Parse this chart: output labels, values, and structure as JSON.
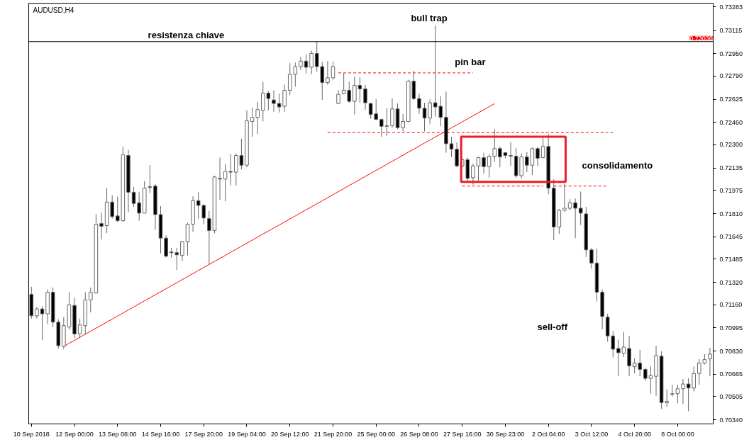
{
  "chart_data": {
    "type": "candlestick",
    "title": "AUDUSD,H4",
    "categories": [
      "10 Sep 2018",
      null,
      null,
      null,
      null,
      null,
      null,
      null,
      "12 Sep 00:00",
      null,
      null,
      null,
      null,
      null,
      null,
      null,
      "13 Sep 08:00",
      null,
      null,
      null,
      null,
      null,
      null,
      null,
      "14 Sep 16:00",
      null,
      null,
      null,
      null,
      null,
      null,
      null,
      "17 Sep 20:00",
      null,
      null,
      null,
      null,
      null,
      null,
      null,
      "19 Sep 04:00",
      null,
      null,
      null,
      null,
      null,
      null,
      null,
      "20 Sep 12:00",
      null,
      null,
      null,
      null,
      null,
      null,
      null,
      "21 Sep 20:00",
      null,
      null,
      null,
      null,
      null,
      null,
      null,
      "25 Sep 00:00",
      null,
      null,
      null,
      null,
      null,
      null,
      null,
      "26 Sep 08:00",
      null,
      null,
      null,
      null,
      null,
      null,
      null,
      "27 Sep 16:00",
      null,
      null,
      null,
      null,
      null,
      null,
      null,
      "30 Sep 23:00",
      null,
      null,
      null,
      null,
      null,
      null,
      null,
      "2 Oct 04:00",
      null,
      null,
      null,
      null,
      null,
      null,
      null,
      "3 Oct 12:00",
      null,
      null,
      null,
      null,
      null,
      null,
      null,
      "4 Oct 20:00",
      null,
      null,
      null,
      null,
      null,
      null,
      null,
      "8 Oct 00:00",
      null,
      null,
      null,
      null,
      null,
      null
    ],
    "ohlc": [
      [
        0.71234,
        0.71288,
        0.71061,
        0.71081
      ],
      [
        0.71081,
        0.71145,
        0.71061,
        0.7113
      ],
      [
        0.7113,
        0.7115,
        0.70907,
        0.71095
      ],
      [
        0.71095,
        0.71269,
        0.71021,
        0.71249
      ],
      [
        0.71249,
        0.71283,
        0.71001,
        0.71036
      ],
      [
        0.71036,
        0.71056,
        0.70848,
        0.70868
      ],
      [
        0.70863,
        0.71071,
        0.70843,
        0.71011
      ],
      [
        0.71001,
        0.71249,
        0.70982,
        0.7116
      ],
      [
        0.71155,
        0.71209,
        0.70922,
        0.70952
      ],
      [
        0.70952,
        0.71061,
        0.70922,
        0.71016
      ],
      [
        0.71011,
        0.71249,
        0.70947,
        0.71194
      ],
      [
        0.71194,
        0.71283,
        0.71105,
        0.71249
      ],
      [
        0.71244,
        0.71808,
        0.71239,
        0.71734
      ],
      [
        0.71739,
        0.71818,
        0.71625,
        0.71719
      ],
      [
        0.71724,
        0.71991,
        0.7167,
        0.71892
      ],
      [
        0.71892,
        0.71942,
        0.71774,
        0.71788
      ],
      [
        0.71793,
        0.71932,
        0.71749,
        0.71759
      ],
      [
        0.71759,
        0.72288,
        0.71749,
        0.72229
      ],
      [
        0.72224,
        0.72264,
        0.71818,
        0.71962
      ],
      [
        0.71962,
        0.72001,
        0.71858,
        0.71882
      ],
      [
        0.71887,
        0.71962,
        0.71759,
        0.71813
      ],
      [
        0.71813,
        0.72041,
        0.71813,
        0.71991
      ],
      [
        0.72001,
        0.72155,
        0.71957,
        0.71996
      ],
      [
        0.72006,
        0.72021,
        0.71694,
        0.71803
      ],
      [
        0.71803,
        0.71863,
        0.71526,
        0.71635
      ],
      [
        0.71635,
        0.71655,
        0.71496,
        0.71506
      ],
      [
        0.71536,
        0.71566,
        0.71496,
        0.71531
      ],
      [
        0.71531,
        0.71566,
        0.71407,
        0.71516
      ],
      [
        0.71511,
        0.71615,
        0.71472,
        0.7161
      ],
      [
        0.7161,
        0.71744,
        0.71511,
        0.71734
      ],
      [
        0.71734,
        0.71932,
        0.71679,
        0.71902
      ],
      [
        0.71902,
        0.71962,
        0.71774,
        0.71868
      ],
      [
        0.71868,
        0.71877,
        0.71734,
        0.71778
      ],
      [
        0.71774,
        0.71828,
        0.71447,
        0.71689
      ],
      [
        0.71689,
        0.7208,
        0.7167,
        0.72071
      ],
      [
        0.72061,
        0.72209,
        0.71907,
        0.72056
      ],
      [
        0.72056,
        0.72165,
        0.71897,
        0.7211
      ],
      [
        0.7211,
        0.72234,
        0.72011,
        0.72105
      ],
      [
        0.72105,
        0.72239,
        0.72011,
        0.72224
      ],
      [
        0.72224,
        0.72343,
        0.72125,
        0.72155
      ],
      [
        0.72155,
        0.72546,
        0.7214,
        0.72471
      ],
      [
        0.72467,
        0.72566,
        0.72358,
        0.72496
      ],
      [
        0.72496,
        0.72605,
        0.72377,
        0.72551
      ],
      [
        0.72546,
        0.72749,
        0.72467,
        0.72669
      ],
      [
        0.72669,
        0.72684,
        0.72546,
        0.7263
      ],
      [
        0.7262,
        0.72689,
        0.72536,
        0.72595
      ],
      [
        0.72595,
        0.72665,
        0.72531,
        0.7257
      ],
      [
        0.72575,
        0.72729,
        0.72536,
        0.72689
      ],
      [
        0.72689,
        0.72882,
        0.72655,
        0.72803
      ],
      [
        0.72803,
        0.72887,
        0.72714,
        0.72858
      ],
      [
        0.72858,
        0.72927,
        0.72833,
        0.72897
      ],
      [
        0.72897,
        0.72942,
        0.72808,
        0.72853
      ],
      [
        0.72853,
        0.72971,
        0.72803,
        0.72952
      ],
      [
        0.72952,
        0.73036,
        0.72823,
        0.72858
      ],
      [
        0.72858,
        0.72892,
        0.7262,
        0.72744
      ],
      [
        0.72744,
        0.72897,
        0.72729,
        0.72778
      ],
      [
        0.72778,
        0.72892,
        0.72764,
        0.72858
      ],
      [
        0.72595,
        0.72689,
        0.7259,
        0.7266
      ],
      [
        0.72665,
        0.72813,
        0.7266,
        0.72689
      ],
      [
        0.72689,
        0.72749,
        0.726,
        0.7261
      ],
      [
        0.7261,
        0.72788,
        0.72516,
        0.72724
      ],
      [
        0.72724,
        0.72783,
        0.726,
        0.72699
      ],
      [
        0.72699,
        0.72729,
        0.72551,
        0.726
      ],
      [
        0.72595,
        0.726,
        0.72486,
        0.72516
      ],
      [
        0.72521,
        0.72625,
        0.72476,
        0.72481
      ],
      [
        0.72481,
        0.72486,
        0.72358,
        0.72432
      ],
      [
        0.72432,
        0.72561,
        0.72363,
        0.72437
      ],
      [
        0.72437,
        0.7263,
        0.72422,
        0.72556
      ],
      [
        0.72556,
        0.72595,
        0.72412,
        0.72422
      ],
      [
        0.72422,
        0.72521,
        0.72397,
        0.72467
      ],
      [
        0.72467,
        0.72764,
        0.72462,
        0.72754
      ],
      [
        0.72754,
        0.72828,
        0.7262,
        0.7263
      ],
      [
        0.7263,
        0.72665,
        0.72521,
        0.72561
      ],
      [
        0.72561,
        0.726,
        0.72397,
        0.72491
      ],
      [
        0.72491,
        0.72625,
        0.72447,
        0.726
      ],
      [
        0.726,
        0.7315,
        0.72501,
        0.7257
      ],
      [
        0.72575,
        0.72645,
        0.72432,
        0.72496
      ],
      [
        0.72496,
        0.72679,
        0.72244,
        0.72308
      ],
      [
        0.72308,
        0.72358,
        0.72214,
        0.72269
      ],
      [
        0.72269,
        0.72318,
        0.7214,
        0.7215
      ],
      [
        0.7215,
        0.72204,
        0.7214,
        0.72194
      ],
      [
        0.72194,
        0.72209,
        0.72041,
        0.72061
      ],
      [
        0.72066,
        0.72165,
        0.72016,
        0.7215
      ],
      [
        0.7215,
        0.72214,
        0.72041,
        0.72209
      ],
      [
        0.72209,
        0.72244,
        0.72095,
        0.72145
      ],
      [
        0.72145,
        0.72234,
        0.72066,
        0.72219
      ],
      [
        0.72219,
        0.72412,
        0.72179,
        0.72273
      ],
      [
        0.72273,
        0.72288,
        0.7214,
        0.72214
      ],
      [
        0.72244,
        0.72249,
        0.72204,
        0.72224
      ],
      [
        0.72224,
        0.72318,
        0.7215,
        0.72219
      ],
      [
        0.72219,
        0.72278,
        0.72066,
        0.7208
      ],
      [
        0.7208,
        0.72239,
        0.72061,
        0.72214
      ],
      [
        0.72214,
        0.72249,
        0.72105,
        0.72155
      ],
      [
        0.72155,
        0.72283,
        0.72085,
        0.72273
      ],
      [
        0.72273,
        0.72283,
        0.7215,
        0.72204
      ],
      [
        0.72209,
        0.72348,
        0.72204,
        0.72288
      ],
      [
        0.72288,
        0.72377,
        0.71947,
        0.71991
      ],
      [
        0.71991,
        0.72056,
        0.7162,
        0.71714
      ],
      [
        0.71714,
        0.71843,
        0.71665,
        0.71833
      ],
      [
        0.71833,
        0.72021,
        0.71823,
        0.71848
      ],
      [
        0.71848,
        0.71912,
        0.71833,
        0.71887
      ],
      [
        0.71887,
        0.71917,
        0.71635,
        0.71848
      ],
      [
        0.71848,
        0.71967,
        0.71729,
        0.71813
      ],
      [
        0.71808,
        0.71858,
        0.71501,
        0.71551
      ],
      [
        0.71551,
        0.71566,
        0.71417,
        0.71457
      ],
      [
        0.71457,
        0.71561,
        0.71184,
        0.71249
      ],
      [
        0.71249,
        0.71269,
        0.70986,
        0.71076
      ],
      [
        0.71071,
        0.71095,
        0.70897,
        0.70937
      ],
      [
        0.70937,
        0.70972,
        0.70784,
        0.70843
      ],
      [
        0.70848,
        0.70912,
        0.7065,
        0.70818
      ],
      [
        0.70813,
        0.70967,
        0.70788,
        0.70858
      ],
      [
        0.70848,
        0.70937,
        0.7065,
        0.70724
      ],
      [
        0.70719,
        0.70779,
        0.7067,
        0.70744
      ],
      [
        0.70744,
        0.70838,
        0.7065,
        0.70699
      ],
      [
        0.70699,
        0.70709,
        0.70615,
        0.70635
      ],
      [
        0.70635,
        0.70719,
        0.70526,
        0.70655
      ],
      [
        0.7065,
        0.70868,
        0.70511,
        0.70798
      ],
      [
        0.70793,
        0.70828,
        0.70417,
        0.70462
      ],
      [
        0.70462,
        0.70556,
        0.70432,
        0.70472
      ],
      [
        0.70521,
        0.7059,
        0.70506,
        0.70526
      ],
      [
        0.70526,
        0.7059,
        0.70457,
        0.70561
      ],
      [
        0.70561,
        0.7063,
        0.70452,
        0.70595
      ],
      [
        0.70595,
        0.70635,
        0.70402,
        0.70566
      ],
      [
        0.70566,
        0.70719,
        0.70541,
        0.7067
      ],
      [
        0.7067,
        0.70774,
        0.7059,
        0.70744
      ],
      [
        0.70744,
        0.70808,
        0.70734,
        0.70769
      ],
      [
        0.70774,
        0.70853,
        0.7065,
        0.70808
      ]
    ],
    "series": [
      {
        "type": "line",
        "color": "#ff0000",
        "line_style": "solid",
        "values": [
          null,
          null,
          null,
          null,
          null,
          null,
          0.70863,
          0.70885,
          0.70906,
          0.70928,
          0.7095,
          0.70971,
          0.70993,
          0.71014,
          0.71036,
          0.71058,
          0.71079,
          0.71101,
          0.71123,
          0.71144,
          0.71166,
          0.71188,
          0.71209,
          0.71231,
          0.71252,
          0.71274,
          0.71296,
          0.71317,
          0.71339,
          0.71361,
          0.71382,
          0.71404,
          0.71426,
          0.71447,
          0.71469,
          0.7149,
          0.71512,
          0.71534,
          0.71555,
          0.71577,
          0.71599,
          0.7162,
          0.71642,
          0.71664,
          0.71685,
          0.71707,
          0.71728,
          0.7175,
          0.71772,
          0.71793,
          0.71815,
          0.71837,
          0.71858,
          0.7188,
          0.71901,
          0.71923,
          0.71945,
          0.71966,
          0.71988,
          0.7201,
          0.72031,
          0.72053,
          0.72075,
          0.72096,
          0.72118,
          0.72139,
          0.72161,
          0.72183,
          0.72204,
          0.72226,
          0.72248,
          0.72269,
          0.72291,
          0.72313,
          0.72334,
          0.72356,
          0.72377,
          0.72399,
          0.72421,
          0.72442,
          0.72464,
          0.72486,
          0.72507,
          0.72529,
          0.7255,
          0.72572,
          0.72594,
          null,
          null,
          null,
          null,
          null,
          null,
          null,
          null,
          null,
          null,
          null,
          null,
          null,
          null,
          null,
          null,
          null,
          null,
          null,
          null,
          null,
          null,
          null,
          null,
          null,
          null,
          null,
          null,
          null,
          null,
          null,
          null,
          null,
          null,
          null,
          null,
          null,
          null,
          null,
          null
        ]
      },
      {
        "type": "line",
        "color": "#ff0000",
        "line_style": "dashed",
        "values": [
          null,
          null,
          null,
          null,
          null,
          null,
          null,
          null,
          null,
          null,
          null,
          null,
          null,
          null,
          null,
          null,
          null,
          null,
          null,
          null,
          null,
          null,
          null,
          null,
          null,
          null,
          null,
          null,
          null,
          null,
          null,
          null,
          null,
          null,
          null,
          null,
          null,
          null,
          null,
          null,
          null,
          null,
          null,
          null,
          null,
          null,
          null,
          null,
          null,
          null,
          null,
          null,
          null,
          null,
          null,
          null,
          null,
          0.72813,
          0.72813,
          0.72813,
          0.72813,
          0.72813,
          0.72813,
          0.72813,
          0.72813,
          0.72813,
          0.72813,
          0.72813,
          0.72813,
          0.72813,
          0.72813,
          0.72813,
          0.72813,
          0.72813,
          0.72813,
          0.72813,
          0.72813,
          0.72813,
          0.72813,
          0.72813,
          0.72813,
          0.72813,
          0.72813,
          null,
          null,
          null,
          null,
          null,
          null,
          null,
          null,
          null,
          null,
          null,
          null,
          null,
          null,
          null,
          null,
          null,
          null,
          null,
          null,
          null,
          null,
          null,
          null,
          null,
          null,
          null,
          null,
          null,
          null,
          null,
          null,
          null,
          null,
          null,
          null,
          null,
          null,
          null,
          null,
          null,
          null,
          null,
          null
        ]
      },
      {
        "type": "line",
        "color": "#ff0000",
        "line_style": "dashed",
        "values": [
          null,
          null,
          null,
          null,
          null,
          null,
          null,
          null,
          null,
          null,
          null,
          null,
          null,
          null,
          null,
          null,
          null,
          null,
          null,
          null,
          null,
          null,
          null,
          null,
          null,
          null,
          null,
          null,
          null,
          null,
          null,
          null,
          null,
          null,
          null,
          null,
          null,
          null,
          null,
          null,
          null,
          null,
          null,
          null,
          null,
          null,
          null,
          null,
          null,
          null,
          null,
          null,
          null,
          null,
          null,
          0.72387,
          0.72387,
          0.72387,
          0.72387,
          0.72387,
          0.72387,
          0.72387,
          0.72387,
          0.72387,
          0.72387,
          0.72387,
          0.72387,
          0.72387,
          0.72387,
          0.72387,
          0.72387,
          0.72387,
          0.72387,
          0.72387,
          0.72387,
          0.72387,
          0.72387,
          0.72387,
          0.72387,
          0.72387,
          0.72387,
          0.72387,
          0.72387,
          0.72387,
          0.72387,
          0.72387,
          0.72387,
          0.72387,
          0.72387,
          0.72387,
          0.72387,
          0.72387,
          0.72387,
          0.72387,
          0.72387,
          0.72387,
          0.72387,
          0.72387,
          0.72387,
          0.72387,
          0.72387,
          0.72387,
          0.72387,
          0.72387,
          0.72387,
          0.72387,
          0.72387,
          0.72387,
          0.72387,
          null,
          null,
          null,
          null,
          null,
          null,
          null,
          null,
          null,
          null,
          null,
          null,
          null,
          null,
          null,
          null,
          null,
          null
        ]
      },
      {
        "type": "line",
        "color": "#ff0000",
        "line_style": "dashed",
        "values": [
          null,
          null,
          null,
          null,
          null,
          null,
          null,
          null,
          null,
          null,
          null,
          null,
          null,
          null,
          null,
          null,
          null,
          null,
          null,
          null,
          null,
          null,
          null,
          null,
          null,
          null,
          null,
          null,
          null,
          null,
          null,
          null,
          null,
          null,
          null,
          null,
          null,
          null,
          null,
          null,
          null,
          null,
          null,
          null,
          null,
          null,
          null,
          null,
          null,
          null,
          null,
          null,
          null,
          null,
          null,
          null,
          null,
          null,
          null,
          null,
          null,
          null,
          null,
          null,
          null,
          null,
          null,
          null,
          null,
          null,
          null,
          null,
          null,
          null,
          null,
          null,
          null,
          null,
          null,
          null,
          0.72006,
          0.72006,
          0.72006,
          0.72006,
          0.72006,
          0.72006,
          0.72006,
          0.72006,
          0.72006,
          0.72006,
          0.72006,
          0.72006,
          0.72006,
          0.72006,
          0.72006,
          0.72006,
          null,
          0.72006,
          0.72006,
          0.72006,
          0.72006,
          0.72006,
          0.72006,
          0.72006,
          0.72006,
          0.72006,
          0.72006,
          0.72006,
          null,
          null,
          null,
          null,
          null,
          null,
          null,
          null,
          null,
          null,
          null,
          null,
          null,
          null,
          null,
          null,
          null,
          null,
          null
        ]
      }
    ],
    "ref_lines": [
      {
        "axis": "y",
        "value": 0.73036,
        "label": "0.73036",
        "color": "#000000"
      }
    ],
    "annotations": [
      "resistenza chiave",
      "bull trap",
      "pin bar",
      "consolidamento",
      "sell-off"
    ],
    "ylim": [
      0.7031,
      0.7331
    ],
    "yticks": [
      {
        "value": 0.73283,
        "label": "0.73283"
      },
      {
        "value": 0.73115,
        "label": "0.73115"
      },
      {
        "value": 0.7295,
        "label": "0.72950"
      },
      {
        "value": 0.7279,
        "label": "0.72790"
      },
      {
        "value": 0.72625,
        "label": "0.72625"
      },
      {
        "value": 0.7246,
        "label": "0.72460"
      },
      {
        "value": 0.723,
        "label": "0.72300"
      },
      {
        "value": 0.72135,
        "label": "0.72135"
      },
      {
        "value": 0.71975,
        "label": "0.71975"
      },
      {
        "value": 0.7181,
        "label": "0.71810"
      },
      {
        "value": 0.71645,
        "label": "0.71645"
      },
      {
        "value": 0.71485,
        "label": "0.71485"
      },
      {
        "value": 0.7132,
        "label": "0.71320"
      },
      {
        "value": 0.7116,
        "label": "0.71160"
      },
      {
        "value": 0.70995,
        "label": "0.70995"
      },
      {
        "value": 0.7083,
        "label": "0.70830"
      },
      {
        "value": 0.70665,
        "label": "0.70665"
      },
      {
        "value": 0.70505,
        "label": "0.70505"
      },
      {
        "value": 0.7034,
        "label": "0.70340"
      }
    ],
    "grid": false
  }
}
